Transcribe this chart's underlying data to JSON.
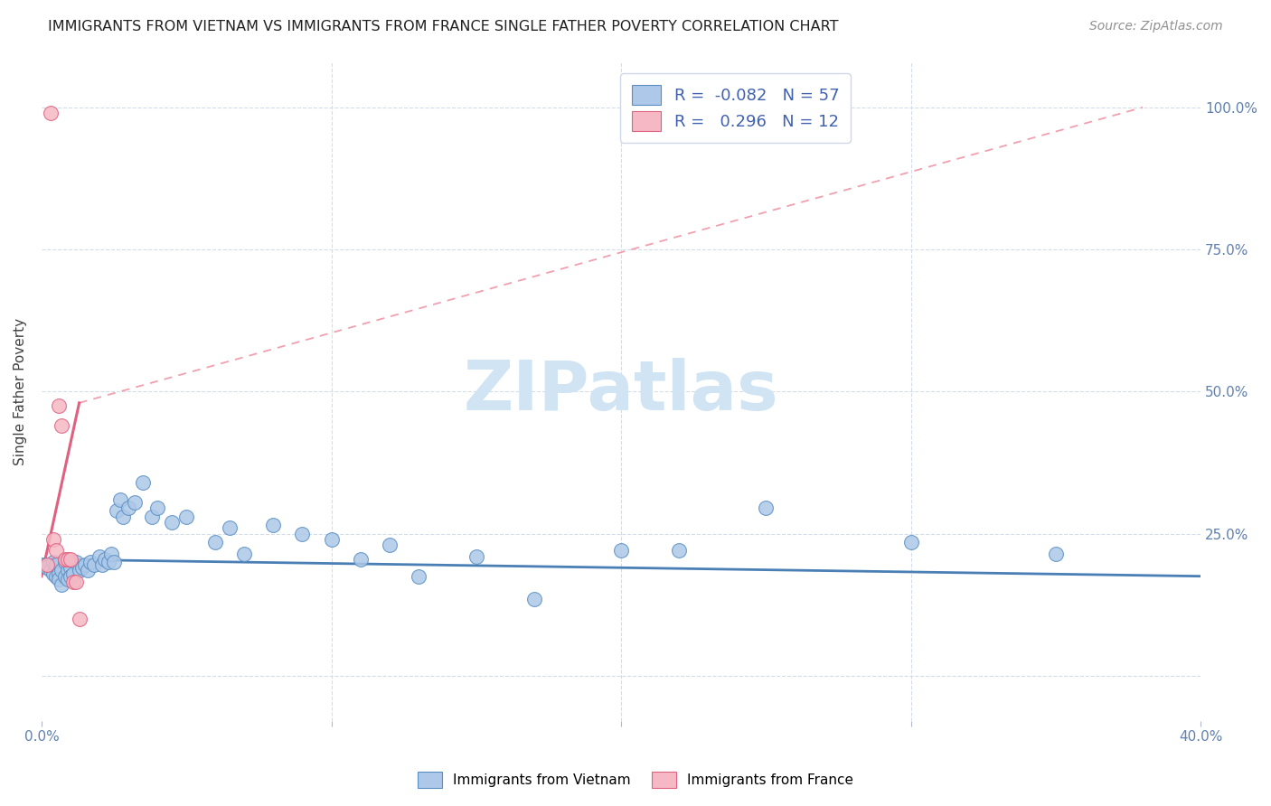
{
  "title": "IMMIGRANTS FROM VIETNAM VS IMMIGRANTS FROM FRANCE SINGLE FATHER POVERTY CORRELATION CHART",
  "source": "Source: ZipAtlas.com",
  "ylabel": "Single Father Poverty",
  "legend_label1": "Immigrants from Vietnam",
  "legend_label2": "Immigrants from France",
  "R1": -0.082,
  "N1": 57,
  "R2": 0.296,
  "N2": 12,
  "color_vietnam": "#adc8e8",
  "color_france": "#f5b8c4",
  "color_vietnam_edge": "#5a8fc4",
  "color_france_edge": "#e06080",
  "trendline_vietnam": "#4a7fb5",
  "trendline_france": "#e06080",
  "trendline_france_dashed": "#f0a0b0",
  "watermark_color": "#d0e4f4",
  "xlim": [
    0.0,
    0.4
  ],
  "ylim": [
    -0.08,
    1.08
  ],
  "vietnam_x": [
    0.001,
    0.002,
    0.003,
    0.004,
    0.004,
    0.005,
    0.005,
    0.006,
    0.006,
    0.007,
    0.007,
    0.008,
    0.008,
    0.009,
    0.009,
    0.01,
    0.01,
    0.011,
    0.012,
    0.013,
    0.014,
    0.015,
    0.016,
    0.017,
    0.018,
    0.02,
    0.021,
    0.022,
    0.023,
    0.024,
    0.025,
    0.026,
    0.027,
    0.028,
    0.03,
    0.032,
    0.035,
    0.038,
    0.04,
    0.045,
    0.05,
    0.06,
    0.065,
    0.07,
    0.08,
    0.09,
    0.1,
    0.11,
    0.12,
    0.13,
    0.15,
    0.17,
    0.2,
    0.22,
    0.25,
    0.3,
    0.35
  ],
  "vietnam_y": [
    0.195,
    0.19,
    0.185,
    0.18,
    0.2,
    0.175,
    0.195,
    0.18,
    0.17,
    0.185,
    0.16,
    0.2,
    0.175,
    0.185,
    0.17,
    0.19,
    0.175,
    0.18,
    0.2,
    0.185,
    0.19,
    0.195,
    0.185,
    0.2,
    0.195,
    0.21,
    0.195,
    0.205,
    0.2,
    0.215,
    0.2,
    0.29,
    0.31,
    0.28,
    0.295,
    0.305,
    0.34,
    0.28,
    0.295,
    0.27,
    0.28,
    0.235,
    0.26,
    0.215,
    0.265,
    0.25,
    0.24,
    0.205,
    0.23,
    0.175,
    0.21,
    0.135,
    0.22,
    0.22,
    0.295,
    0.235,
    0.215
  ],
  "france_x": [
    0.002,
    0.003,
    0.004,
    0.005,
    0.006,
    0.007,
    0.008,
    0.009,
    0.01,
    0.011,
    0.012,
    0.013
  ],
  "france_y": [
    0.195,
    0.99,
    0.24,
    0.22,
    0.475,
    0.44,
    0.205,
    0.205,
    0.205,
    0.165,
    0.165,
    0.1
  ],
  "trendline_v_x0": 0.0,
  "trendline_v_x1": 0.4,
  "trendline_v_y0": 0.205,
  "trendline_v_y1": 0.175,
  "trendline_f_solid_x0": 0.0,
  "trendline_f_solid_x1": 0.013,
  "trendline_f_y0": 0.175,
  "trendline_f_y1": 0.48,
  "trendline_f_dash_x0": 0.013,
  "trendline_f_dash_x1": 0.38,
  "trendline_f_dash_y0": 0.48,
  "trendline_f_dash_y1": 1.0
}
